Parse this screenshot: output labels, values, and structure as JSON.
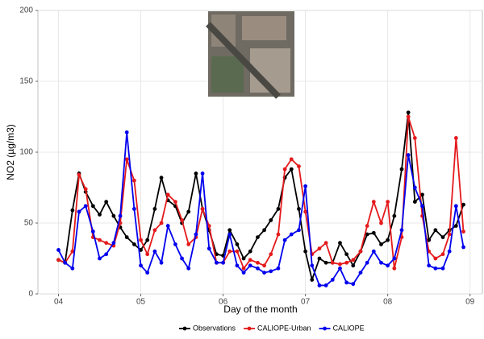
{
  "chart_data": {
    "type": "line",
    "x_label": "Day of the month",
    "y_label": "NO2 (µg/m3)",
    "x": [
      4,
      4.08,
      4.17,
      4.25,
      4.33,
      4.42,
      4.5,
      4.58,
      4.67,
      4.75,
      4.83,
      4.92,
      5,
      5.08,
      5.17,
      5.25,
      5.33,
      5.42,
      5.5,
      5.58,
      5.67,
      5.75,
      5.83,
      5.92,
      6,
      6.08,
      6.17,
      6.25,
      6.33,
      6.42,
      6.5,
      6.58,
      6.67,
      6.75,
      6.83,
      6.92,
      7,
      7.08,
      7.17,
      7.25,
      7.33,
      7.42,
      7.5,
      7.58,
      7.67,
      7.75,
      7.83,
      7.92,
      8,
      8.08,
      8.17,
      8.25,
      8.33,
      8.42,
      8.5,
      8.58,
      8.67,
      8.75,
      8.83,
      8.92
    ],
    "series": [
      {
        "name": "Observations",
        "color": "#000000",
        "values": [
          24,
          22,
          59,
          85,
          72,
          62,
          56,
          65,
          55,
          47,
          40,
          35,
          31,
          38,
          60,
          82,
          66,
          62,
          50,
          58,
          85,
          60,
          45,
          28,
          27,
          45,
          35,
          25,
          30,
          40,
          45,
          52,
          60,
          82,
          88,
          60,
          30,
          10,
          25,
          22,
          22,
          36,
          28,
          20,
          30,
          42,
          43,
          35,
          38,
          55,
          88,
          128,
          65,
          70,
          38,
          45,
          40,
          45,
          48,
          63
        ]
      },
      {
        "name": "CALIOPE-Urban",
        "color": "#e41a1c",
        "values": [
          24,
          22,
          30,
          84,
          74,
          40,
          38,
          36,
          34,
          50,
          95,
          80,
          38,
          28,
          45,
          50,
          70,
          65,
          52,
          35,
          40,
          60,
          48,
          22,
          22,
          30,
          30,
          18,
          24,
          22,
          20,
          28,
          42,
          88,
          95,
          90,
          58,
          28,
          32,
          36,
          22,
          21,
          22,
          24,
          30,
          48,
          65,
          50,
          65,
          18,
          40,
          125,
          110,
          55,
          30,
          25,
          28,
          42,
          110,
          44
        ]
      },
      {
        "name": "CALIOPE",
        "color": "#0000ee",
        "values": [
          31,
          22,
          18,
          58,
          62,
          44,
          25,
          28,
          36,
          55,
          114,
          60,
          20,
          15,
          30,
          22,
          48,
          35,
          25,
          18,
          42,
          85,
          32,
          22,
          22,
          42,
          20,
          15,
          20,
          18,
          15,
          16,
          18,
          38,
          42,
          45,
          76,
          20,
          6,
          6,
          10,
          18,
          8,
          7,
          15,
          22,
          30,
          22,
          20,
          25,
          45,
          98,
          75,
          62,
          20,
          18,
          18,
          30,
          62,
          33
        ]
      }
    ],
    "xlim": [
      3.75,
      9.15
    ],
    "ylim": [
      0,
      200
    ],
    "xticks": [
      {
        "value": 4,
        "label": "04"
      },
      {
        "value": 5,
        "label": "05"
      },
      {
        "value": 6,
        "label": "06"
      },
      {
        "value": 7,
        "label": "07"
      },
      {
        "value": 8,
        "label": "08"
      },
      {
        "value": 9,
        "label": "09"
      }
    ],
    "yticks": [
      0,
      50,
      100,
      150,
      200
    ],
    "grid": true
  }
}
